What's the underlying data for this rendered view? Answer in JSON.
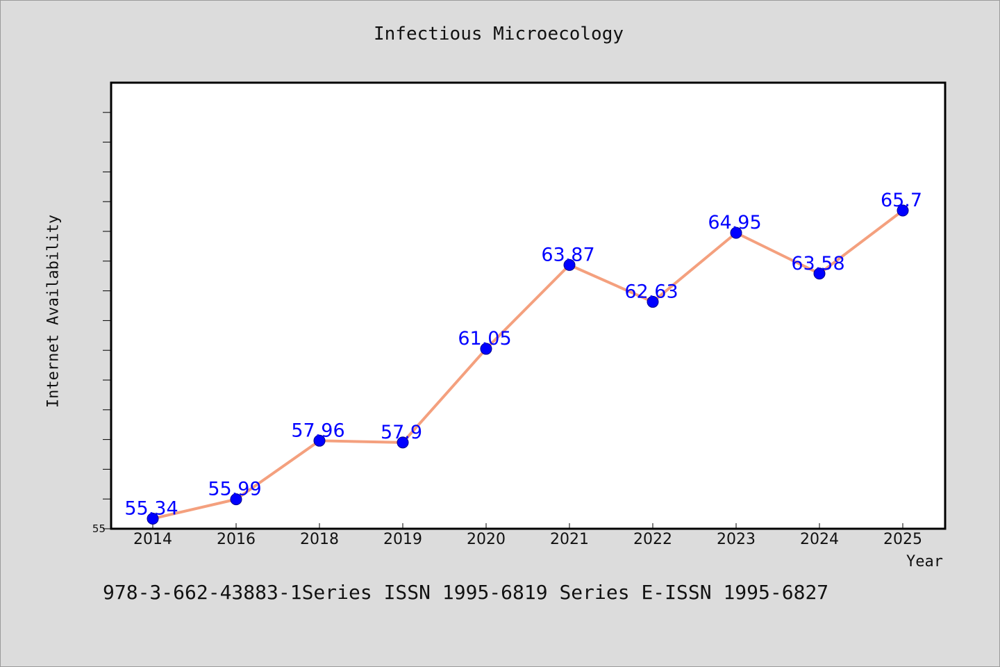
{
  "chart_data": {
    "type": "line",
    "title": "Infectious Microecology",
    "xlabel": "Year",
    "ylabel": "Internet Availability",
    "categories": [
      "2014",
      "2016",
      "2018",
      "2019",
      "2020",
      "2021",
      "2022",
      "2023",
      "2024",
      "2025"
    ],
    "series": [
      {
        "values": [
          55.34,
          55.99,
          57.96,
          57.9,
          61.05,
          63.87,
          62.63,
          64.95,
          63.58,
          65.7
        ],
        "data_labels": [
          "55.34",
          "55.99",
          "57.96",
          "57.9",
          "61.05",
          "63.87",
          "62.63",
          "64.95",
          "63.58",
          "65.7"
        ]
      }
    ],
    "ylim": [
      55,
      70
    ],
    "ytick_labels": [
      "55"
    ],
    "grid": false,
    "line_color": "#f4a07e",
    "marker_color": "#0000ff",
    "label_color": "#0000ff"
  },
  "footer": {
    "text": "978-3-662-43883-1Series ISSN 1995-6819 Series E-ISSN 1995-6827"
  }
}
